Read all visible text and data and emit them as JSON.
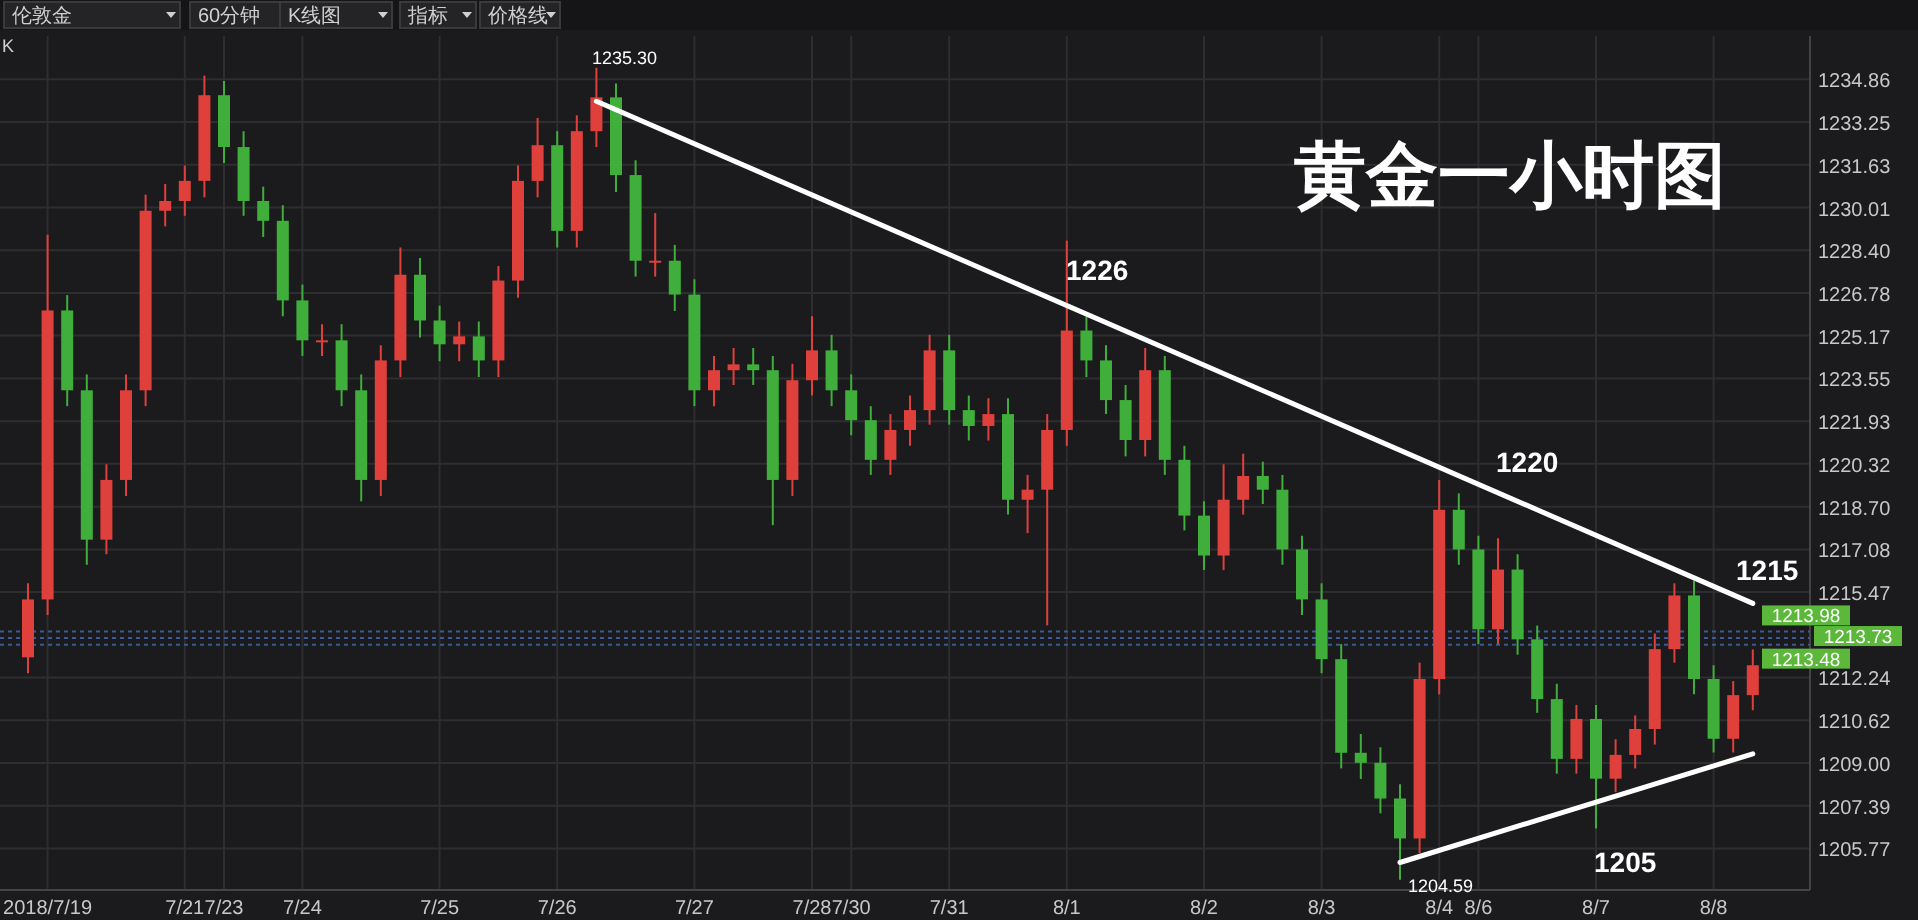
{
  "chart_data": {
    "type": "candlestick",
    "title": "黄金一小时图",
    "categories": [
      null,
      "2018/7/19",
      null,
      null,
      null,
      null,
      null,
      null,
      "7/21",
      null,
      "7/23",
      null,
      null,
      null,
      "7/24",
      null,
      null,
      null,
      null,
      null,
      null,
      "7/25",
      null,
      null,
      null,
      null,
      null,
      "7/26",
      null,
      null,
      null,
      null,
      null,
      null,
      "7/27",
      null,
      null,
      null,
      null,
      null,
      "7/28",
      null,
      "7/30",
      null,
      null,
      null,
      null,
      "7/31",
      null,
      null,
      null,
      null,
      null,
      "8/1",
      null,
      null,
      null,
      null,
      null,
      null,
      "8/2",
      null,
      null,
      null,
      null,
      null,
      "8/3",
      null,
      null,
      null,
      null,
      null,
      "8/4",
      null,
      "8/6",
      null,
      null,
      null,
      null,
      null,
      "8/7",
      null,
      null,
      null,
      null,
      null,
      "8/8",
      null,
      null
    ],
    "ohlc": [
      [
        1213.0,
        1215.8,
        1212.4,
        1215.19
      ],
      [
        1215.19,
        1228.98,
        1214.6,
        1226.12
      ],
      [
        1226.12,
        1226.7,
        1222.5,
        1223.1
      ],
      [
        1223.1,
        1223.7,
        1216.5,
        1217.45
      ],
      [
        1217.45,
        1220.3,
        1216.9,
        1219.71
      ],
      [
        1219.71,
        1223.7,
        1219.1,
        1223.1
      ],
      [
        1223.1,
        1230.5,
        1222.5,
        1229.89
      ],
      [
        1229.89,
        1230.9,
        1229.3,
        1230.26
      ],
      [
        1230.26,
        1231.6,
        1229.7,
        1231.02
      ],
      [
        1231.02,
        1235.0,
        1230.4,
        1234.26
      ],
      [
        1234.26,
        1234.8,
        1231.7,
        1232.3
      ],
      [
        1232.3,
        1232.9,
        1229.7,
        1230.26
      ],
      [
        1230.26,
        1230.8,
        1228.9,
        1229.51
      ],
      [
        1229.51,
        1230.1,
        1225.9,
        1226.5
      ],
      [
        1226.5,
        1227.1,
        1224.4,
        1224.99
      ],
      [
        1224.99,
        1225.6,
        1224.4,
        1224.99
      ],
      [
        1224.99,
        1225.6,
        1222.5,
        1223.1
      ],
      [
        1223.1,
        1223.7,
        1218.9,
        1219.71
      ],
      [
        1219.71,
        1224.8,
        1219.1,
        1224.23
      ],
      [
        1224.23,
        1228.5,
        1223.6,
        1227.47
      ],
      [
        1227.47,
        1228.1,
        1225.1,
        1225.74
      ],
      [
        1225.74,
        1226.3,
        1224.2,
        1224.84
      ],
      [
        1224.84,
        1225.7,
        1224.2,
        1225.14
      ],
      [
        1225.14,
        1225.7,
        1223.6,
        1224.23
      ],
      [
        1224.23,
        1227.8,
        1223.6,
        1227.25
      ],
      [
        1227.25,
        1231.6,
        1226.6,
        1231.02
      ],
      [
        1231.02,
        1233.4,
        1230.4,
        1232.37
      ],
      [
        1232.37,
        1232.9,
        1228.5,
        1229.13
      ],
      [
        1229.13,
        1233.5,
        1228.5,
        1232.9
      ],
      [
        1232.9,
        1235.3,
        1232.3,
        1234.18
      ],
      [
        1234.18,
        1234.7,
        1230.6,
        1231.24
      ],
      [
        1231.24,
        1231.8,
        1227.4,
        1228.0
      ],
      [
        1228.0,
        1229.8,
        1227.4,
        1228.0
      ],
      [
        1228.0,
        1228.6,
        1226.1,
        1226.72
      ],
      [
        1226.72,
        1227.3,
        1222.5,
        1223.1
      ],
      [
        1223.1,
        1224.4,
        1222.5,
        1223.86
      ],
      [
        1223.86,
        1224.7,
        1223.3,
        1224.08
      ],
      [
        1224.08,
        1224.7,
        1223.3,
        1223.86
      ],
      [
        1223.86,
        1224.4,
        1218.0,
        1219.71
      ],
      [
        1219.71,
        1224.1,
        1219.1,
        1223.48
      ],
      [
        1223.48,
        1225.9,
        1222.9,
        1224.61
      ],
      [
        1224.61,
        1225.2,
        1222.5,
        1223.1
      ],
      [
        1223.1,
        1223.7,
        1221.4,
        1221.97
      ],
      [
        1221.97,
        1222.5,
        1219.9,
        1220.47
      ],
      [
        1220.47,
        1222.2,
        1219.9,
        1221.6
      ],
      [
        1221.6,
        1222.9,
        1221.0,
        1222.35
      ],
      [
        1222.35,
        1225.2,
        1221.8,
        1224.61
      ],
      [
        1224.61,
        1225.2,
        1221.8,
        1222.35
      ],
      [
        1222.35,
        1222.9,
        1221.2,
        1221.75
      ],
      [
        1221.75,
        1222.8,
        1221.2,
        1222.2
      ],
      [
        1222.2,
        1222.8,
        1218.4,
        1218.96
      ],
      [
        1218.96,
        1219.9,
        1217.7,
        1219.34
      ],
      [
        1219.34,
        1222.2,
        1214.21,
        1221.6
      ],
      [
        1221.6,
        1228.76,
        1221.0,
        1225.36
      ],
      [
        1225.36,
        1225.9,
        1223.6,
        1224.23
      ],
      [
        1224.23,
        1224.8,
        1222.2,
        1222.73
      ],
      [
        1222.73,
        1223.3,
        1220.6,
        1221.22
      ],
      [
        1221.22,
        1224.7,
        1220.6,
        1223.86
      ],
      [
        1223.86,
        1224.4,
        1219.9,
        1220.47
      ],
      [
        1220.47,
        1221.0,
        1217.8,
        1218.36
      ],
      [
        1218.36,
        1218.9,
        1216.3,
        1216.85
      ],
      [
        1216.85,
        1220.3,
        1216.3,
        1218.96
      ],
      [
        1218.96,
        1220.7,
        1218.4,
        1219.86
      ],
      [
        1219.86,
        1220.4,
        1218.8,
        1219.34
      ],
      [
        1219.34,
        1219.9,
        1216.5,
        1217.08
      ],
      [
        1217.08,
        1217.6,
        1214.6,
        1215.19
      ],
      [
        1215.19,
        1215.8,
        1212.4,
        1212.93
      ],
      [
        1212.93,
        1213.5,
        1208.8,
        1209.39
      ],
      [
        1209.39,
        1210.1,
        1208.4,
        1209.01
      ],
      [
        1209.01,
        1209.6,
        1207.1,
        1207.66
      ],
      [
        1207.66,
        1208.2,
        1204.59,
        1206.15
      ],
      [
        1206.15,
        1212.8,
        1205.6,
        1212.18
      ],
      [
        1212.18,
        1219.71,
        1211.6,
        1218.58
      ],
      [
        1218.58,
        1219.2,
        1216.5,
        1217.08
      ],
      [
        1217.08,
        1217.6,
        1213.5,
        1214.06
      ],
      [
        1214.06,
        1217.5,
        1213.5,
        1216.32
      ],
      [
        1216.32,
        1216.9,
        1213.1,
        1213.68
      ],
      [
        1213.68,
        1214.2,
        1210.9,
        1211.42
      ],
      [
        1211.42,
        1212.0,
        1208.6,
        1209.16
      ],
      [
        1209.16,
        1211.2,
        1208.6,
        1210.67
      ],
      [
        1210.67,
        1211.2,
        1206.53,
        1208.41
      ],
      [
        1208.41,
        1209.9,
        1207.9,
        1209.31
      ],
      [
        1209.31,
        1210.8,
        1208.8,
        1210.29
      ],
      [
        1210.29,
        1213.9,
        1209.7,
        1213.31
      ],
      [
        1213.31,
        1215.8,
        1212.8,
        1215.34
      ],
      [
        1215.34,
        1215.9,
        1211.6,
        1212.18
      ],
      [
        1212.18,
        1212.7,
        1209.4,
        1209.92
      ],
      [
        1209.92,
        1212.1,
        1209.4,
        1211.57
      ],
      [
        1211.57,
        1213.3,
        1211.0,
        1212.7
      ]
    ],
    "series": [
      {
        "type": "line",
        "color": "#ffffff",
        "values": [
          null,
          null,
          null,
          null,
          null,
          null,
          null,
          null,
          null,
          null,
          null,
          null,
          null,
          null,
          null,
          null,
          null,
          null,
          null,
          null,
          null,
          null,
          null,
          null,
          null,
          null,
          null,
          null,
          null,
          1234.03,
          null,
          null,
          null,
          null,
          null,
          null,
          null,
          null,
          null,
          null,
          null,
          null,
          null,
          null,
          null,
          null,
          null,
          null,
          null,
          null,
          null,
          null,
          null,
          null,
          null,
          null,
          null,
          null,
          null,
          null,
          null,
          null,
          null,
          null,
          null,
          null,
          null,
          null,
          null,
          null,
          null,
          null,
          null,
          null,
          null,
          null,
          null,
          null,
          null,
          null,
          null,
          null,
          null,
          null,
          null,
          null,
          null,
          null,
          1215.04
        ]
      },
      {
        "type": "line",
        "color": "#ffffff",
        "values": [
          null,
          null,
          null,
          null,
          null,
          null,
          null,
          null,
          null,
          null,
          null,
          null,
          null,
          null,
          null,
          null,
          null,
          null,
          null,
          null,
          null,
          null,
          null,
          null,
          null,
          null,
          null,
          null,
          null,
          null,
          null,
          null,
          null,
          null,
          null,
          null,
          null,
          null,
          null,
          null,
          null,
          null,
          null,
          null,
          null,
          null,
          null,
          null,
          null,
          null,
          null,
          null,
          null,
          null,
          null,
          null,
          null,
          null,
          null,
          null,
          null,
          null,
          null,
          null,
          null,
          null,
          null,
          null,
          null,
          null,
          1205.24,
          null,
          null,
          null,
          null,
          null,
          null,
          null,
          null,
          null,
          null,
          null,
          null,
          null,
          null,
          null,
          null,
          null,
          1209.35
        ]
      }
    ],
    "ylim": [
      1204.2,
      1236.5
    ],
    "yticks": [
      1205.77,
      1207.39,
      {
        "value": 1209,
        "label": "1209.00"
      },
      1210.62,
      1212.24,
      1215.47,
      1217.08,
      {
        "value": 1218.7,
        "label": "1218.70"
      },
      1220.32,
      1221.93,
      1223.55,
      1225.17,
      1226.78,
      {
        "value": 1228.4,
        "label": "1228.40"
      },
      1230.01,
      1231.63,
      1233.25,
      1234.86
    ],
    "grid": true,
    "ref_lines": [
      {
        "axis": "y",
        "value": 1213.98,
        "label": "1213.98",
        "color": "#3a5a9a",
        "line_style": "dotted"
      },
      {
        "axis": "y",
        "value": 1213.73,
        "label": "1213.73",
        "color": "#3a5a9a",
        "line_style": "dotted"
      },
      {
        "axis": "y",
        "value": 1213.48,
        "label": "1213.48",
        "color": "#3a5a9a",
        "line_style": "dotted"
      }
    ],
    "annotations": [
      "伦敦金",
      "60分钟",
      "K线图",
      "指标",
      "价格线",
      "K",
      "1235.30",
      "1226",
      "1220",
      "1215",
      "1205",
      "1204.59"
    ]
  }
}
